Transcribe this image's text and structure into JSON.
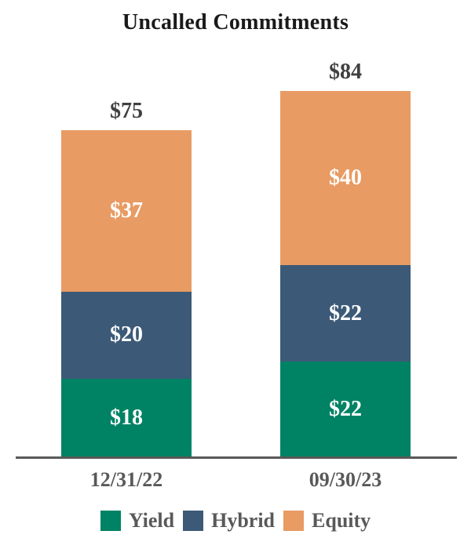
{
  "title": "Uncalled Commitments",
  "colors": {
    "yield": "#008264",
    "hybrid": "#3C5A77",
    "equity": "#E89B63",
    "title_text": "#1A1A1A",
    "total_text": "#404040",
    "axis_text": "#595959",
    "axis_line": "#595959",
    "segment_text": "#FFFFFF",
    "background": "#FFFFFF"
  },
  "chart_data": {
    "type": "bar",
    "stacked": true,
    "title": "Uncalled Commitments",
    "categories": [
      "12/31/22",
      "09/30/23"
    ],
    "series": [
      {
        "name": "Yield",
        "color": "#008264",
        "values": [
          18,
          22
        ],
        "labels": [
          "$18",
          "$22"
        ]
      },
      {
        "name": "Hybrid",
        "color": "#3C5A77",
        "values": [
          20,
          22
        ],
        "labels": [
          "$20",
          "$22"
        ]
      },
      {
        "name": "Equity",
        "color": "#E89B63",
        "values": [
          37,
          40
        ],
        "labels": [
          "$37",
          "$40"
        ]
      }
    ],
    "totals": [
      75,
      84
    ],
    "total_labels": [
      "$75",
      "$84"
    ],
    "xlabel": "",
    "ylabel": "",
    "ylim": [
      0,
      84
    ],
    "grid": false,
    "legend_position": "bottom",
    "legend": [
      "Yield",
      "Hybrid",
      "Equity"
    ]
  }
}
